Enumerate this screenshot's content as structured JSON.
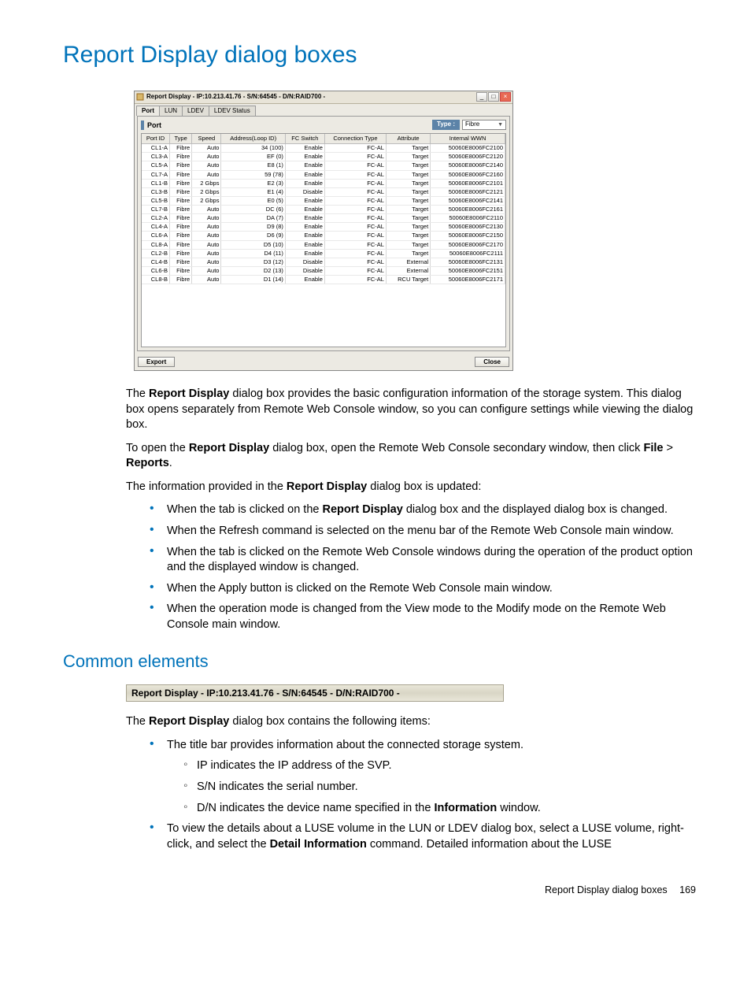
{
  "page": {
    "title": "Report Display dialog boxes",
    "section2": "Common elements",
    "footer_text": "Report Display dialog boxes",
    "page_number": "169"
  },
  "dialog": {
    "title": "Report Display - IP:10.213.41.76 - S/N:64545 - D/N:RAID700 -",
    "tabs": [
      "Port",
      "LUN",
      "LDEV",
      "LDEV Status"
    ],
    "active_tab": "Port",
    "port_label": "Port",
    "type_label": "Type :",
    "type_value": "Fibre",
    "columns": [
      "Port ID",
      "Type",
      "Speed",
      "Address(Loop ID)",
      "FC Switch",
      "Connection Type",
      "Attribute",
      "Internal WWN"
    ],
    "rows": [
      [
        "CL1-A",
        "Fibre",
        "Auto",
        "34 (100)",
        "Enable",
        "FC-AL",
        "Target",
        "50060E8006FC2100"
      ],
      [
        "CL3-A",
        "Fibre",
        "Auto",
        "EF (0)",
        "Enable",
        "FC-AL",
        "Target",
        "50060E8006FC2120"
      ],
      [
        "CL5-A",
        "Fibre",
        "Auto",
        "E8 (1)",
        "Enable",
        "FC-AL",
        "Target",
        "50060E8006FC2140"
      ],
      [
        "CL7-A",
        "Fibre",
        "Auto",
        "59 (78)",
        "Enable",
        "FC-AL",
        "Target",
        "50060E8006FC2160"
      ],
      [
        "CL1-B",
        "Fibre",
        "2 Gbps",
        "E2 (3)",
        "Enable",
        "FC-AL",
        "Target",
        "50060E8006FC2101"
      ],
      [
        "CL3-B",
        "Fibre",
        "2 Gbps",
        "E1 (4)",
        "Disable",
        "FC-AL",
        "Target",
        "50060E8006FC2121"
      ],
      [
        "CL5-B",
        "Fibre",
        "2 Gbps",
        "E0 (5)",
        "Enable",
        "FC-AL",
        "Target",
        "50060E8006FC2141"
      ],
      [
        "CL7-B",
        "Fibre",
        "Auto",
        "DC (6)",
        "Enable",
        "FC-AL",
        "Target",
        "50060E8006FC2161"
      ],
      [
        "CL2-A",
        "Fibre",
        "Auto",
        "DA (7)",
        "Enable",
        "FC-AL",
        "Target",
        "50060E8006FC2110"
      ],
      [
        "CL4-A",
        "Fibre",
        "Auto",
        "D9 (8)",
        "Enable",
        "FC-AL",
        "Target",
        "50060E8006FC2130"
      ],
      [
        "CL6-A",
        "Fibre",
        "Auto",
        "D6 (9)",
        "Enable",
        "FC-AL",
        "Target",
        "50060E8006FC2150"
      ],
      [
        "CL8-A",
        "Fibre",
        "Auto",
        "D5 (10)",
        "Enable",
        "FC-AL",
        "Target",
        "50060E8006FC2170"
      ],
      [
        "CL2-B",
        "Fibre",
        "Auto",
        "D4 (11)",
        "Enable",
        "FC-AL",
        "Target",
        "50060E8006FC2111"
      ],
      [
        "CL4-B",
        "Fibre",
        "Auto",
        "D3 (12)",
        "Disable",
        "FC-AL",
        "External",
        "50060E8006FC2131"
      ],
      [
        "CL6-B",
        "Fibre",
        "Auto",
        "D2 (13)",
        "Disable",
        "FC-AL",
        "External",
        "50060E8006FC2151"
      ],
      [
        "CL8-B",
        "Fibre",
        "Auto",
        "D1 (14)",
        "Enable",
        "FC-AL",
        "RCU Target",
        "50060E8006FC2171"
      ]
    ],
    "export_btn": "Export",
    "close_btn": "Close"
  },
  "text": {
    "p1a": "The ",
    "p1b": "Report Display",
    "p1c": " dialog box provides the basic configuration information of the storage system. This dialog box opens separately from Remote Web Console window, so you can configure settings while viewing the dialog box.",
    "p2a": "To open the ",
    "p2b": "Report Display",
    "p2c": " dialog box, open the Remote Web Console secondary window, then click ",
    "p2d": "File",
    "p2e": " > ",
    "p2f": "Reports",
    "p2g": ".",
    "p3a": "The information provided in the ",
    "p3b": "Report Display",
    "p3c": " dialog box is updated:",
    "b1a": "When the tab is clicked on the ",
    "b1b": "Report Display",
    "b1c": " dialog box and the displayed dialog box is changed.",
    "b2": "When the Refresh command is selected on the menu bar of the Remote Web Console main window.",
    "b3": "When the tab is clicked on the Remote Web Console windows during the operation of the product option and the displayed window is changed.",
    "b4": "When the Apply button is clicked on the Remote Web Console main window.",
    "b5": "When the operation mode is changed from the View mode to the Modify mode on the Remote Web Console main window.",
    "strip": "Report Display - IP:10.213.41.76 - S/N:64545 - D/N:RAID700 -",
    "c1a": "The ",
    "c1b": "Report Display",
    "c1c": " dialog box contains the following items:",
    "cb1": "The title bar provides information about the connected storage system.",
    "cs1": "IP indicates the IP address of the SVP.",
    "cs2": "S/N indicates the serial number.",
    "cs3a": "D/N indicates the device name specified in the ",
    "cs3b": "Information",
    "cs3c": " window.",
    "cb2a": "To view the details about a LUSE volume in the LUN or LDEV dialog box, select a LUSE volume, right-click, and select the ",
    "cb2b": "Detail Information",
    "cb2c": " command. Detailed information about the LUSE"
  }
}
